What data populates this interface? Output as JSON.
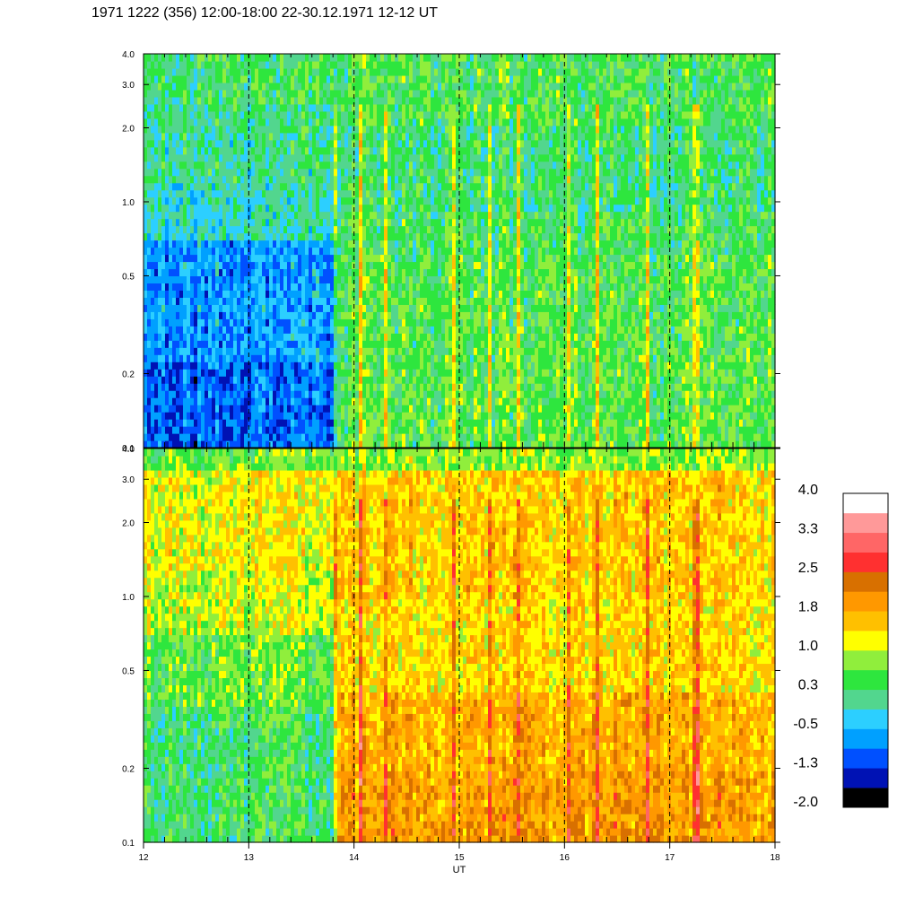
{
  "title": "1971 1222 (356) 12:00-18:00 22-30.12.1971  12-12 UT",
  "chart_data": {
    "type": "heatmap",
    "xlabel": "UT",
    "x_range": [
      12,
      18
    ],
    "x_ticks": [
      "12",
      "13",
      "14",
      "15",
      "16",
      "17",
      "18"
    ],
    "y_scale": "log",
    "y_range": [
      0.1,
      4.0
    ],
    "y_ticks": [
      "0.1",
      "0.2",
      "0.5",
      "1.0",
      "2.0",
      "3.0",
      "4.0"
    ],
    "dashed_gridlines_x": [
      13,
      14,
      15,
      16,
      17
    ],
    "transition_time": 13.83,
    "panels": [
      {
        "id": "upper",
        "before": [
          {
            "f_max": 0.22,
            "level": -1.0
          },
          {
            "f_max": 0.7,
            "level": -0.7
          },
          {
            "f_max": 1.2,
            "level": -0.1
          },
          {
            "f_max": 2.5,
            "level": 0.1
          },
          {
            "f_max": 4.0,
            "level": 0.3
          }
        ],
        "after": [
          {
            "f_max": 0.3,
            "level": 0.5
          },
          {
            "f_max": 0.6,
            "level": 0.45
          },
          {
            "f_max": 0.9,
            "level": 0.35
          },
          {
            "f_max": 2.0,
            "level": 0.2
          },
          {
            "f_max": 4.0,
            "level": 0.4
          }
        ]
      },
      {
        "id": "lower",
        "before": [
          {
            "f_max": 0.35,
            "level": 0.3
          },
          {
            "f_max": 0.7,
            "level": 0.6
          },
          {
            "f_max": 1.3,
            "level": 1.0
          },
          {
            "f_max": 3.2,
            "level": 1.2
          },
          {
            "f_max": 4.0,
            "level": 0.6
          }
        ],
        "after": [
          {
            "f_max": 0.2,
            "level": 1.9
          },
          {
            "f_max": 0.4,
            "level": 1.7
          },
          {
            "f_max": 1.0,
            "level": 1.4
          },
          {
            "f_max": 3.2,
            "level": 1.5
          },
          {
            "f_max": 4.0,
            "level": 0.8
          }
        ]
      }
    ],
    "colorbar": {
      "labels": [
        "4.0",
        "3.3",
        "2.5",
        "1.8",
        "1.0",
        "0.3",
        "-0.5",
        "-1.3",
        "-2.0"
      ],
      "colors": [
        "#000000",
        "#0012b4",
        "#0050ff",
        "#00a0ff",
        "#2ccfff",
        "#52d68e",
        "#2ee63e",
        "#90ee3c",
        "#ffff00",
        "#ffc000",
        "#ff9800",
        "#d87000",
        "#ff3030",
        "#ff6666",
        "#ff9999",
        "#ffffff"
      ]
    }
  }
}
